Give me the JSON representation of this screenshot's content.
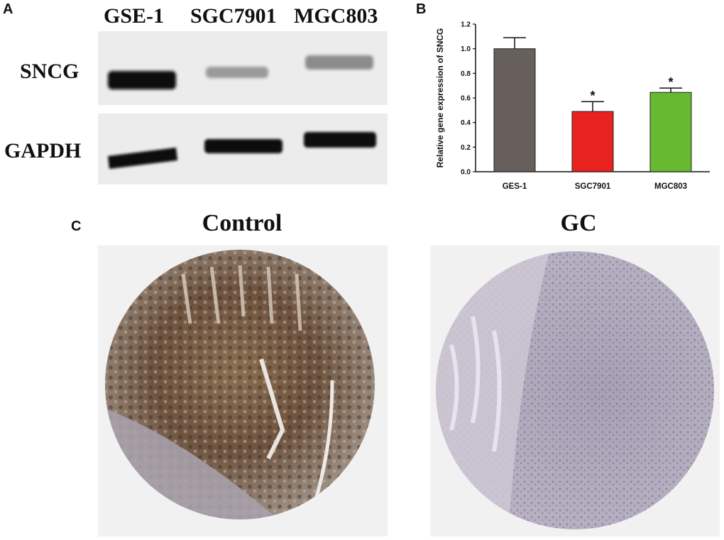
{
  "panels": {
    "a": "A",
    "b": "B",
    "c": "C"
  },
  "blot": {
    "lanes": [
      "GSE-1",
      "SGC7901",
      "MGC803"
    ],
    "rows": [
      "SNCG",
      "GAPDH"
    ]
  },
  "ihc": {
    "control_title": "Control",
    "gc_title": "GC"
  },
  "chart_data": {
    "type": "bar",
    "categories": [
      "GES-1",
      "SGC7901",
      "MGC803"
    ],
    "values": [
      1.0,
      0.49,
      0.645
    ],
    "errors": [
      0.09,
      0.08,
      0.035
    ],
    "significance": [
      "",
      "*",
      "*"
    ],
    "colors": [
      "#665f5b",
      "#e8221f",
      "#67b931"
    ],
    "ylabel": "Relative gene expression of SNCG",
    "xlabel": "",
    "ylim": [
      0,
      1.2
    ],
    "yticks": [
      "0.0",
      "0.2",
      "0.4",
      "0.6",
      "0.8",
      "1.0",
      "1.2"
    ]
  }
}
